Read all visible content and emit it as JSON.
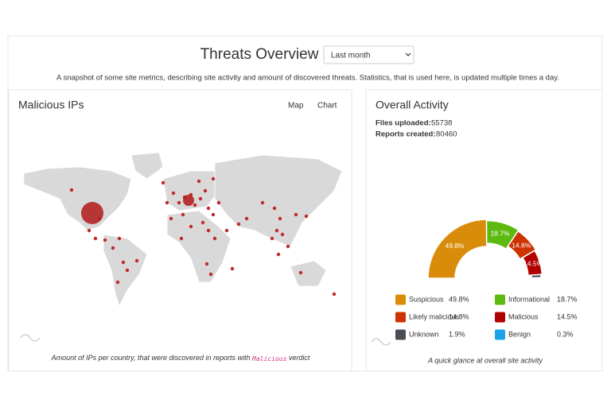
{
  "header": {
    "title": "Threats Overview",
    "period": "Last month",
    "description": "A snapshot of some site metrics, describing site activity and amount of discovered threats. Statistics, that is used here, is updated multiple times a day."
  },
  "malicious_ips": {
    "title": "Malicious IPs",
    "tabs": [
      "Map",
      "Chart"
    ],
    "caption": "Amount of IPs per country, that were discovered in reports with",
    "caption_code": "Malicious",
    "caption_end": "verdict"
  },
  "overall_activity": {
    "title": "Overall Activity",
    "stats": [
      {
        "label": "Files uploaded:",
        "value": 55738
      },
      {
        "label": "Reports created:",
        "value": 80460
      }
    ],
    "chart": {
      "type": "radial-bar",
      "categories": [
        "Suspicious",
        "Informational",
        "Likely malicious",
        "Malicious",
        "Unknown",
        "Benign"
      ],
      "values": [
        49.8,
        18.7,
        14.8,
        14.5,
        1.9,
        0.3
      ],
      "value_labels": [
        "49.8%",
        "18.7%",
        "14.8%",
        "14.5%",
        "1.9%",
        "0.3%"
      ],
      "colors": [
        "#d98c0a",
        "#5cb90f",
        "#cc3300",
        "#b00000",
        "#4a4f57",
        "#1aa3e8"
      ]
    },
    "caption": "A quick glance at overall site activity"
  }
}
